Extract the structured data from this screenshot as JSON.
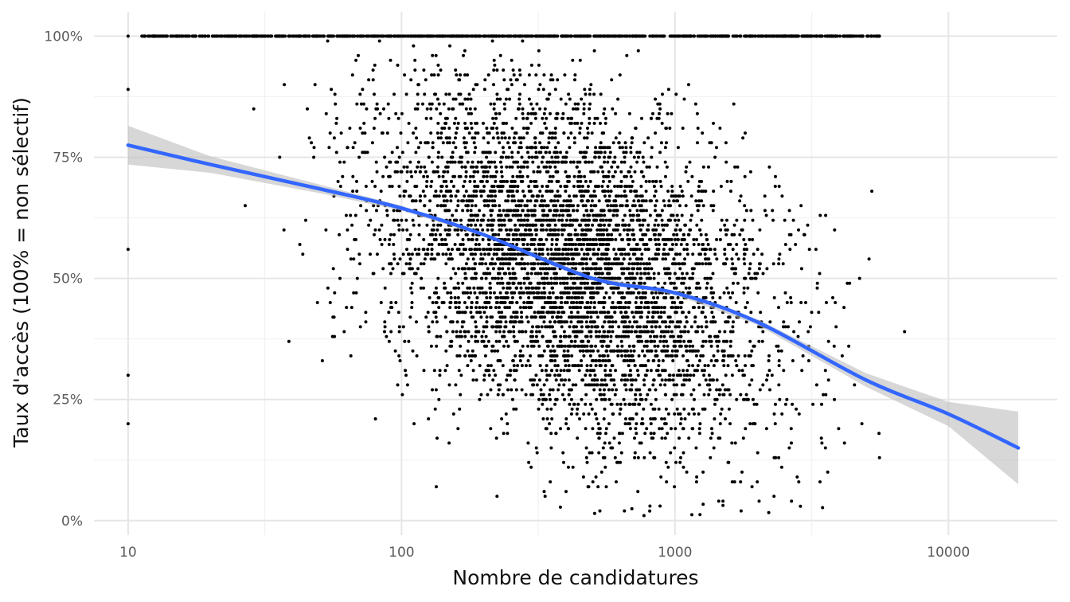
{
  "chart_data": {
    "type": "scatter",
    "xlabel": "Nombre de candidatures",
    "ylabel": "Taux d'accès (100% = non sélectif)",
    "x_scale": "log10",
    "xlim": [
      7.5,
      25000
    ],
    "ylim": [
      -0.03,
      1.05
    ],
    "x_ticks": [
      {
        "value": 10,
        "label": "10"
      },
      {
        "value": 100,
        "label": "100"
      },
      {
        "value": 1000,
        "label": "1000"
      },
      {
        "value": 10000,
        "label": "10000"
      }
    ],
    "y_ticks": [
      {
        "value": 0,
        "label": "0%"
      },
      {
        "value": 0.25,
        "label": "25%"
      },
      {
        "value": 0.5,
        "label": "50%"
      },
      {
        "value": 0.75,
        "label": "75%"
      },
      {
        "value": 1.0,
        "label": "100%"
      }
    ],
    "grid": true,
    "legend": "none",
    "points_description": "Several thousand formations (approx. 10 to 18000 candidatures); density heaviest between 100 and 3000 candidatures, access rate spread from 0% to 100% with a saturated band at 100%.",
    "smooth_line": {
      "method": "loess",
      "color": "#3366ff",
      "x": [
        10,
        20,
        50,
        100,
        200,
        500,
        1000,
        2000,
        5000,
        10000,
        18000
      ],
      "y": [
        0.775,
        0.735,
        0.685,
        0.645,
        0.59,
        0.5,
        0.47,
        0.41,
        0.29,
        0.22,
        0.15
      ],
      "ci_low": [
        0.735,
        0.718,
        0.676,
        0.64,
        0.587,
        0.497,
        0.466,
        0.404,
        0.276,
        0.195,
        0.075
      ],
      "ci_high": [
        0.815,
        0.752,
        0.694,
        0.65,
        0.593,
        0.503,
        0.474,
        0.416,
        0.304,
        0.245,
        0.225
      ]
    },
    "colors": {
      "points": "#000000",
      "band": "#bdbdbd",
      "line": "#3366ff"
    }
  }
}
